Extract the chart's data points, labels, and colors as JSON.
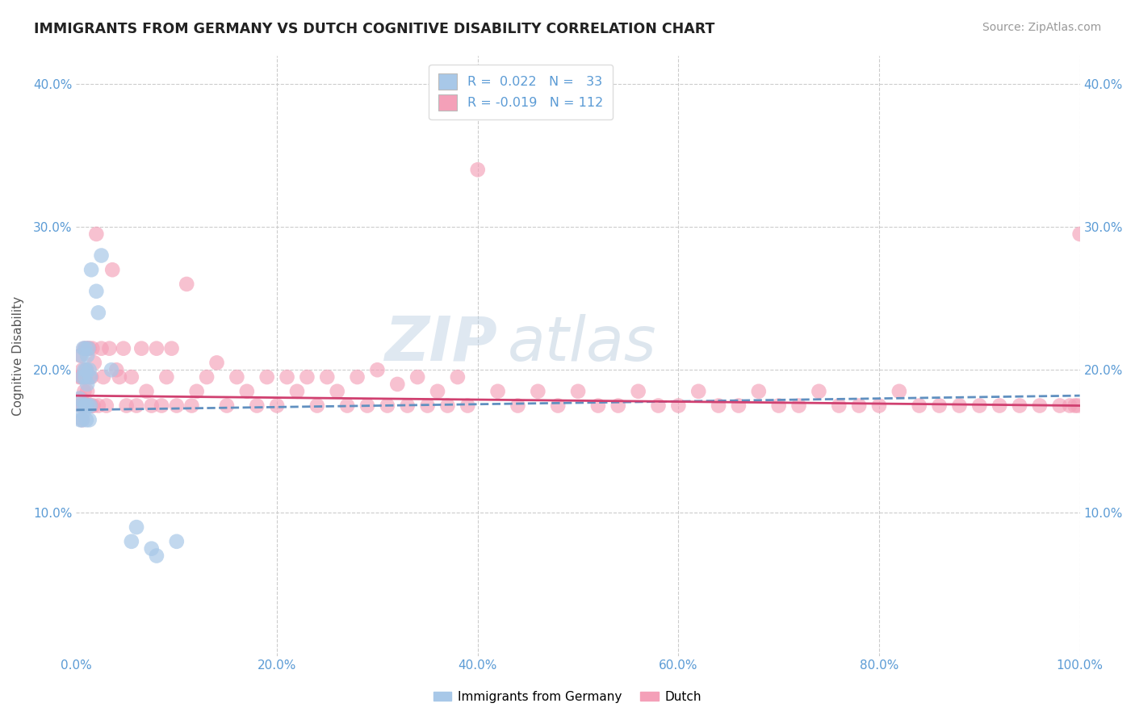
{
  "title": "IMMIGRANTS FROM GERMANY VS DUTCH COGNITIVE DISABILITY CORRELATION CHART",
  "source": "Source: ZipAtlas.com",
  "ylabel": "Cognitive Disability",
  "xlim": [
    0.0,
    1.0
  ],
  "ylim": [
    0.0,
    0.42
  ],
  "yticks": [
    0.1,
    0.2,
    0.3,
    0.4
  ],
  "ytick_labels": [
    "10.0%",
    "20.0%",
    "30.0%",
    "40.0%"
  ],
  "xticks": [
    0.0,
    0.2,
    0.4,
    0.6,
    0.8,
    1.0
  ],
  "xtick_labels": [
    "0.0%",
    "20.0%",
    "40.0%",
    "60.0%",
    "80.0%",
    "100.0%"
  ],
  "R1": 0.022,
  "N1": 33,
  "R2": -0.019,
  "N2": 112,
  "color_blue": "#a8c8e8",
  "color_pink": "#f4a0b8",
  "color_blue_line": "#6090c0",
  "color_pink_line": "#d04070",
  "tick_color": "#5b9bd5",
  "title_color": "#222222",
  "source_color": "#999999",
  "watermark_color": "#c8d8e8",
  "grid_color": "#cccccc",
  "germany_x": [
    0.003,
    0.004,
    0.005,
    0.005,
    0.006,
    0.006,
    0.007,
    0.007,
    0.008,
    0.008,
    0.009,
    0.009,
    0.01,
    0.01,
    0.01,
    0.011,
    0.011,
    0.012,
    0.012,
    0.013,
    0.013,
    0.014,
    0.014,
    0.015,
    0.02,
    0.022,
    0.025,
    0.035,
    0.055,
    0.06,
    0.075,
    0.08,
    0.1
  ],
  "germany_y": [
    0.18,
    0.165,
    0.21,
    0.175,
    0.195,
    0.165,
    0.215,
    0.17,
    0.2,
    0.175,
    0.195,
    0.215,
    0.175,
    0.2,
    0.165,
    0.19,
    0.21,
    0.175,
    0.215,
    0.165,
    0.2,
    0.195,
    0.175,
    0.27,
    0.255,
    0.24,
    0.28,
    0.2,
    0.08,
    0.09,
    0.075,
    0.07,
    0.08
  ],
  "dutch_x": [
    0.003,
    0.004,
    0.004,
    0.005,
    0.005,
    0.006,
    0.006,
    0.007,
    0.007,
    0.008,
    0.008,
    0.009,
    0.009,
    0.01,
    0.01,
    0.011,
    0.011,
    0.012,
    0.012,
    0.013,
    0.013,
    0.014,
    0.015,
    0.015,
    0.016,
    0.017,
    0.018,
    0.02,
    0.022,
    0.025,
    0.027,
    0.03,
    0.033,
    0.036,
    0.04,
    0.043,
    0.047,
    0.05,
    0.055,
    0.06,
    0.065,
    0.07,
    0.075,
    0.08,
    0.085,
    0.09,
    0.095,
    0.1,
    0.11,
    0.115,
    0.12,
    0.13,
    0.14,
    0.15,
    0.16,
    0.17,
    0.18,
    0.19,
    0.2,
    0.21,
    0.22,
    0.23,
    0.24,
    0.25,
    0.26,
    0.27,
    0.28,
    0.29,
    0.3,
    0.31,
    0.32,
    0.33,
    0.34,
    0.35,
    0.36,
    0.37,
    0.38,
    0.39,
    0.4,
    0.42,
    0.44,
    0.46,
    0.48,
    0.5,
    0.52,
    0.54,
    0.56,
    0.58,
    0.6,
    0.62,
    0.64,
    0.66,
    0.68,
    0.7,
    0.72,
    0.74,
    0.76,
    0.78,
    0.8,
    0.82,
    0.84,
    0.86,
    0.88,
    0.9,
    0.92,
    0.94,
    0.96,
    0.98,
    0.99,
    0.995,
    0.998,
    1.0
  ],
  "dutch_y": [
    0.195,
    0.21,
    0.175,
    0.195,
    0.18,
    0.2,
    0.165,
    0.195,
    0.175,
    0.215,
    0.185,
    0.195,
    0.175,
    0.2,
    0.215,
    0.175,
    0.185,
    0.215,
    0.175,
    0.195,
    0.215,
    0.175,
    0.195,
    0.175,
    0.215,
    0.175,
    0.205,
    0.295,
    0.175,
    0.215,
    0.195,
    0.175,
    0.215,
    0.27,
    0.2,
    0.195,
    0.215,
    0.175,
    0.195,
    0.175,
    0.215,
    0.185,
    0.175,
    0.215,
    0.175,
    0.195,
    0.215,
    0.175,
    0.26,
    0.175,
    0.185,
    0.195,
    0.205,
    0.175,
    0.195,
    0.185,
    0.175,
    0.195,
    0.175,
    0.195,
    0.185,
    0.195,
    0.175,
    0.195,
    0.185,
    0.175,
    0.195,
    0.175,
    0.2,
    0.175,
    0.19,
    0.175,
    0.195,
    0.175,
    0.185,
    0.175,
    0.195,
    0.175,
    0.34,
    0.185,
    0.175,
    0.185,
    0.175,
    0.185,
    0.175,
    0.175,
    0.185,
    0.175,
    0.175,
    0.185,
    0.175,
    0.175,
    0.185,
    0.175,
    0.175,
    0.185,
    0.175,
    0.175,
    0.175,
    0.185,
    0.175,
    0.175,
    0.175,
    0.175,
    0.175,
    0.175,
    0.175,
    0.175,
    0.175,
    0.175,
    0.175,
    0.295
  ],
  "blue_line_start_y": 0.172,
  "blue_line_end_y": 0.182,
  "pink_line_start_y": 0.182,
  "pink_line_end_y": 0.175
}
